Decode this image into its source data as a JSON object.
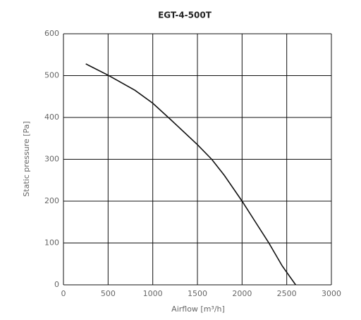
{
  "chart_data": {
    "type": "line",
    "title": "EGT-4-500T",
    "xlabel": "Airflow [m³/h]",
    "ylabel": "Static pressure [Pa]",
    "x": [
      250,
      500,
      800,
      1000,
      1200,
      1500,
      1660,
      1800,
      2000,
      2150,
      2300,
      2450,
      2600
    ],
    "values": [
      528,
      501,
      465,
      434,
      395,
      335,
      300,
      262,
      200,
      150,
      100,
      45,
      0
    ],
    "color": "#111111",
    "xlim": [
      0,
      3000
    ],
    "xticks": [
      0,
      500,
      1000,
      1500,
      2000,
      2500,
      3000
    ],
    "ylim": [
      0,
      600
    ],
    "yticks": [
      0,
      100,
      200,
      300,
      400,
      500,
      600
    ],
    "grid": true
  }
}
